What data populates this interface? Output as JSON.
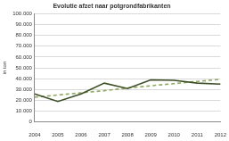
{
  "chart_data": {
    "type": "line",
    "title": "Evolutie afzet naar potgrondfabrikanten",
    "y_label": "in ton",
    "categories": [
      "2004",
      "2005",
      "2006",
      "2007",
      "2008",
      "2009",
      "2010",
      "2011",
      "2012"
    ],
    "series": [
      {
        "color": "#3d4f26",
        "line_style": "solid",
        "marker": "none",
        "values": [
          26000,
          19000,
          26000,
          36000,
          31000,
          39000,
          38500,
          36000,
          35000
        ]
      },
      {
        "color": "#8fa860",
        "line_style": "dashed",
        "marker": "none",
        "values": [
          23000,
          25000,
          27000,
          29000,
          31500,
          33500,
          35500,
          37500,
          39500
        ]
      }
    ],
    "ylim": [
      0,
      100000
    ],
    "yticks": [
      0,
      {
        "value": 10000,
        "label": "10.000"
      },
      {
        "value": 20000,
        "label": "20.000"
      },
      {
        "value": 30000,
        "label": "30.000"
      },
      {
        "value": 40000,
        "label": "40.000"
      },
      {
        "value": 50000,
        "label": "50.000"
      },
      {
        "value": 60000,
        "label": "60.000"
      },
      {
        "value": 70000,
        "label": "70.000"
      },
      {
        "value": 80000,
        "label": "80.000"
      },
      {
        "value": 90000,
        "label": "90.000"
      },
      {
        "value": 100000,
        "label": "100.000"
      }
    ],
    "grid": true
  }
}
